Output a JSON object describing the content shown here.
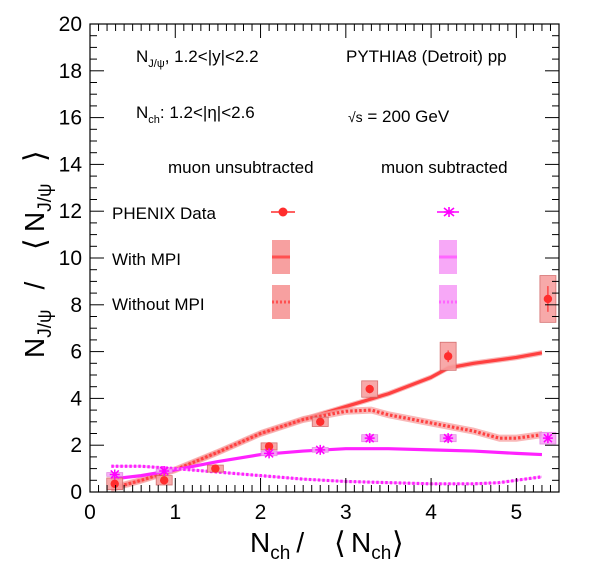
{
  "chart_data": {
    "type": "scatter",
    "title": "",
    "xlabel": {
      "main": "N",
      "sub": "ch",
      "slash": "/",
      "den_main": "N",
      "den_sub": "ch"
    },
    "ylabel": {
      "main": "N",
      "sub": "J/ψ",
      "slash": "/",
      "den_main": "N",
      "den_sub": "J/ψ"
    },
    "xlim": [
      0,
      5.5
    ],
    "ylim": [
      0,
      20
    ],
    "x_ticks": [
      "0",
      "1",
      "2",
      "3",
      "4",
      "5"
    ],
    "y_ticks": [
      "0",
      "2",
      "4",
      "6",
      "8",
      "10",
      "12",
      "14",
      "16",
      "18",
      "20"
    ],
    "grid": false,
    "annotations": {
      "sel1": {
        "main": "N",
        "sub": "J/ψ",
        "rest": ", 1.2<|y|<2.2"
      },
      "sel2": {
        "main": "N",
        "sub": "ch",
        "rest": ": 1.2<|η|<2.6"
      },
      "generator": "PYTHIA8 (Detroit) pp",
      "energy": {
        "root": "√s",
        "rest": " = 200 GeV"
      }
    },
    "legend": {
      "placement": "upper-left",
      "col1": "muon unsubtracted",
      "col2": "muon subtracted",
      "rows": [
        "PHENIX Data",
        "With MPI",
        "Without MPI"
      ]
    },
    "colors": {
      "unsub": "#ff2d2d",
      "unsub_band": "#f7a0a0",
      "sub": "#ff00ff",
      "sub_band": "#f7a8f7"
    },
    "series": [
      {
        "name": "PHENIX Data — muon unsubtracted",
        "style": "points",
        "color": "#ff2d2d",
        "x": [
          0.29,
          0.87,
          1.47,
          2.1,
          2.7,
          3.28,
          4.2,
          5.37
        ],
        "y": [
          0.35,
          0.5,
          1.0,
          1.95,
          3.0,
          4.4,
          5.8,
          8.25
        ],
        "err": [
          0.15,
          0.08,
          0.1,
          0.1,
          0.1,
          0.18,
          0.25,
          0.55
        ],
        "sys": [
          0.25,
          0.2,
          0.15,
          0.15,
          0.2,
          0.35,
          0.6,
          1.0
        ]
      },
      {
        "name": "PHENIX Data — muon subtracted",
        "style": "points",
        "color": "#ff00ff",
        "x": [
          0.29,
          0.87,
          2.1,
          2.7,
          3.28,
          4.2,
          5.37
        ],
        "y": [
          0.75,
          0.9,
          1.65,
          1.8,
          2.3,
          2.3,
          2.3
        ],
        "err": [
          0.05,
          0.05,
          0.06,
          0.06,
          0.1,
          0.1,
          0.15
        ],
        "sys": [
          0.08,
          0.08,
          0.1,
          0.1,
          0.15,
          0.15,
          0.25
        ]
      },
      {
        "name": "With MPI — muon unsubtracted",
        "style": "solid",
        "color": "#ff2d2d",
        "x": [
          0.25,
          0.6,
          1.0,
          1.5,
          2.0,
          2.5,
          3.0,
          3.5,
          4.0,
          4.2,
          4.5,
          5.0,
          5.3
        ],
        "y": [
          0.15,
          0.5,
          0.95,
          1.7,
          2.5,
          3.1,
          3.65,
          4.2,
          4.9,
          5.3,
          5.5,
          5.75,
          5.95
        ],
        "band": 0.12
      },
      {
        "name": "Without MPI — muon unsubtracted",
        "style": "dotted",
        "color": "#ff2d2d",
        "x": [
          0.25,
          0.6,
          1.0,
          1.5,
          2.0,
          2.5,
          3.0,
          3.3,
          3.5,
          4.0,
          4.5,
          4.8,
          5.0,
          5.3
        ],
        "y": [
          0.15,
          0.5,
          0.95,
          1.7,
          2.5,
          3.1,
          3.45,
          3.5,
          3.3,
          2.95,
          2.6,
          2.3,
          2.3,
          2.45
        ],
        "band": 0.15
      },
      {
        "name": "With MPI — muon subtracted",
        "style": "solid",
        "color": "#ff00ff",
        "x": [
          0.25,
          0.6,
          1.0,
          1.5,
          2.0,
          2.5,
          3.0,
          3.5,
          4.0,
          4.5,
          5.0,
          5.3
        ],
        "y": [
          0.55,
          0.7,
          0.95,
          1.3,
          1.6,
          1.75,
          1.85,
          1.85,
          1.8,
          1.75,
          1.65,
          1.6
        ],
        "band": 0.05
      },
      {
        "name": "Without MPI — muon subtracted",
        "style": "dotted",
        "color": "#ff00ff",
        "x": [
          0.25,
          0.6,
          1.0,
          1.5,
          2.0,
          2.5,
          3.0,
          3.5,
          4.0,
          4.5,
          4.8,
          5.0,
          5.3
        ],
        "y": [
          1.1,
          1.1,
          1.0,
          0.85,
          0.7,
          0.55,
          0.45,
          0.4,
          0.35,
          0.35,
          0.4,
          0.5,
          0.65
        ],
        "band": 0.05
      }
    ]
  }
}
